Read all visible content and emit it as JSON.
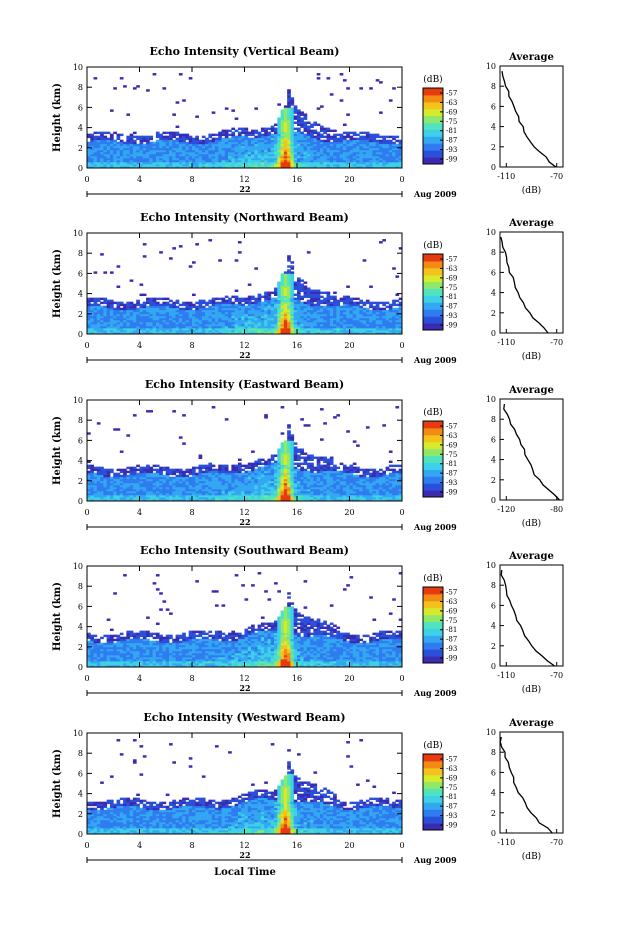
{
  "colors": {
    "scale": [
      "#3b2bb0",
      "#2a4fd9",
      "#2f7cf0",
      "#33a7f2",
      "#3ed0e6",
      "#4fe3c0",
      "#8fe86a",
      "#d6ea2c",
      "#f5c21c",
      "#f28a14",
      "#e63b10"
    ]
  },
  "chart_data": [
    {
      "type": "heatmap",
      "title": "Echo Intensity (Vertical Beam)",
      "xlabel": "",
      "ylabel": "Height (km)",
      "x_ticks": [
        "0",
        "4",
        "8",
        "12",
        "16",
        "20",
        "0"
      ],
      "y_ticks": [
        "0",
        "2",
        "4",
        "6",
        "8",
        "10"
      ],
      "xlim": [
        0,
        24
      ],
      "ylim": [
        0,
        10
      ],
      "date_day": "22",
      "date_month": "Aug 2009",
      "colorbar": {
        "unit": "(dB)",
        "ticks": [
          "-57",
          "-63",
          "-69",
          "-75",
          "-81",
          "-87",
          "-93",
          "-99"
        ]
      },
      "average_profile": {
        "title": "Average",
        "xlabel": "(dB)",
        "x_ticks": [
          "-110",
          "-70"
        ],
        "y_ticks": [
          "0",
          "2",
          "4",
          "6",
          "8",
          "10"
        ],
        "xlim": [
          -115,
          -65
        ],
        "heights": [
          0,
          0.5,
          1,
          1.5,
          2,
          2.5,
          3,
          3.5,
          4,
          4.5,
          5,
          5.5,
          6,
          6.5,
          7,
          7.5,
          8,
          8.5,
          9,
          9.5
        ],
        "values": [
          -70,
          -75,
          -79,
          -84,
          -87,
          -90,
          -93,
          -95,
          -97,
          -99,
          -101,
          -103,
          -104,
          -106,
          -108,
          -109,
          -111,
          -112,
          -113,
          -114
        ]
      }
    },
    {
      "type": "heatmap",
      "title": "Echo Intensity (Northward Beam)",
      "xlabel": "",
      "ylabel": "Height (km)",
      "x_ticks": [
        "0",
        "4",
        "8",
        "12",
        "16",
        "20",
        "0"
      ],
      "y_ticks": [
        "0",
        "2",
        "4",
        "6",
        "8",
        "10"
      ],
      "xlim": [
        0,
        24
      ],
      "ylim": [
        0,
        10
      ],
      "date_day": "22",
      "date_month": "Aug 2009",
      "colorbar": {
        "unit": "(dB)",
        "ticks": [
          "-57",
          "-63",
          "-69",
          "-75",
          "-81",
          "-87",
          "-93",
          "-99"
        ]
      },
      "average_profile": {
        "title": "Average",
        "xlabel": "(dB)",
        "x_ticks": [
          "-110",
          "-70"
        ],
        "y_ticks": [
          "0",
          "2",
          "4",
          "6",
          "8",
          "10"
        ],
        "xlim": [
          -115,
          -65
        ],
        "heights": [
          0,
          0.5,
          1,
          1.5,
          2,
          2.5,
          3,
          3.5,
          4,
          4.5,
          5,
          5.5,
          6,
          6.5,
          7,
          7.5,
          8,
          8.5,
          9,
          9.5
        ],
        "values": [
          -76,
          -80,
          -85,
          -88,
          -91,
          -95,
          -97,
          -99,
          -101,
          -102,
          -104,
          -105,
          -107,
          -108,
          -109,
          -110,
          -111,
          -112,
          -113,
          -114
        ]
      }
    },
    {
      "type": "heatmap",
      "title": "Echo Intensity (Eastward Beam)",
      "xlabel": "",
      "ylabel": "Height (km)",
      "x_ticks": [
        "0",
        "4",
        "8",
        "12",
        "16",
        "20",
        "0"
      ],
      "y_ticks": [
        "0",
        "2",
        "4",
        "6",
        "8",
        "10"
      ],
      "xlim": [
        0,
        24
      ],
      "ylim": [
        0,
        10
      ],
      "date_day": "22",
      "date_month": "Aug 2009",
      "colorbar": {
        "unit": "(dB)",
        "ticks": [
          "-57",
          "-63",
          "-69",
          "-75",
          "-81",
          "-87",
          "-93",
          "-99"
        ]
      },
      "average_profile": {
        "title": "Average",
        "xlabel": "(dB)",
        "x_ticks": [
          "-120",
          "-80"
        ],
        "y_ticks": [
          "0",
          "2",
          "4",
          "6",
          "8",
          "10"
        ],
        "xlim": [
          -125,
          -75
        ],
        "heights": [
          0,
          0.5,
          1,
          1.5,
          2,
          2.5,
          3,
          3.5,
          4,
          4.5,
          5,
          5.5,
          6,
          6.5,
          7,
          7.5,
          8,
          8.5,
          9,
          9.5
        ],
        "values": [
          -78,
          -82,
          -87,
          -91,
          -94,
          -97,
          -99,
          -101,
          -103,
          -105,
          -106,
          -108,
          -110,
          -112,
          -114,
          -116,
          -118,
          -119,
          -121,
          -122
        ]
      }
    },
    {
      "type": "heatmap",
      "title": "Echo Intensity (Southward Beam)",
      "xlabel": "",
      "ylabel": "Height (km)",
      "x_ticks": [
        "0",
        "4",
        "8",
        "12",
        "16",
        "20",
        "0"
      ],
      "y_ticks": [
        "0",
        "2",
        "4",
        "6",
        "8",
        "10"
      ],
      "xlim": [
        0,
        24
      ],
      "ylim": [
        0,
        10
      ],
      "date_day": "22",
      "date_month": "Aug 2009",
      "colorbar": {
        "unit": "(dB)",
        "ticks": [
          "-57",
          "-63",
          "-69",
          "-75",
          "-81",
          "-87",
          "-93",
          "-99"
        ]
      },
      "average_profile": {
        "title": "Average",
        "xlabel": "(dB)",
        "x_ticks": [
          "-110",
          "-70"
        ],
        "y_ticks": [
          "0",
          "2",
          "4",
          "6",
          "8",
          "10"
        ],
        "xlim": [
          -115,
          -65
        ],
        "heights": [
          0,
          0.5,
          1,
          1.5,
          2,
          2.5,
          3,
          3.5,
          4,
          4.5,
          5,
          5.5,
          6,
          6.5,
          7,
          7.5,
          8,
          8.5,
          9,
          9.5
        ],
        "values": [
          -72,
          -77,
          -82,
          -86,
          -89,
          -92,
          -95,
          -97,
          -99,
          -101,
          -102,
          -104,
          -106,
          -107,
          -109,
          -110,
          -111,
          -112,
          -113,
          -114
        ]
      }
    },
    {
      "type": "heatmap",
      "title": "Echo Intensity (Westward Beam)",
      "xlabel": "Local Time",
      "ylabel": "Height (km)",
      "x_ticks": [
        "0",
        "4",
        "8",
        "12",
        "16",
        "20",
        "0"
      ],
      "y_ticks": [
        "0",
        "2",
        "4",
        "6",
        "8",
        "10"
      ],
      "xlim": [
        0,
        24
      ],
      "ylim": [
        0,
        10
      ],
      "date_day": "22",
      "date_month": "Aug 2009",
      "colorbar": {
        "unit": "(dB)",
        "ticks": [
          "-57",
          "-63",
          "-69",
          "-75",
          "-81",
          "-87",
          "-93",
          "-99"
        ]
      },
      "average_profile": {
        "title": "Average",
        "xlabel": "(dB)",
        "x_ticks": [
          "-110",
          "-70"
        ],
        "y_ticks": [
          "0",
          "2",
          "4",
          "6",
          "8",
          "10"
        ],
        "xlim": [
          -115,
          -65
        ],
        "heights": [
          0,
          0.5,
          1,
          1.5,
          2,
          2.5,
          3,
          3.5,
          4,
          4.5,
          5,
          5.5,
          6,
          6.5,
          7,
          7.5,
          8,
          8.5,
          9,
          9.5
        ],
        "values": [
          -73,
          -78,
          -83,
          -87,
          -90,
          -93,
          -96,
          -98,
          -100,
          -102,
          -104,
          -105,
          -106,
          -108,
          -109,
          -110,
          -112,
          -113,
          -114,
          -115
        ]
      }
    }
  ]
}
